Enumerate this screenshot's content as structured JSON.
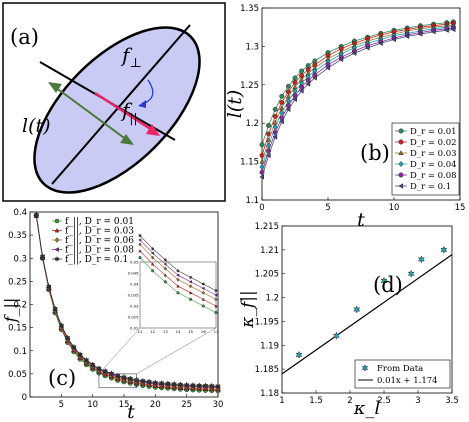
{
  "panels": {
    "a": {
      "label": "(a)",
      "f_perp_label": "f",
      "f_perp_sub": "⊥",
      "f_par_label": "f",
      "f_par_sub": "||",
      "length_label": "l(t)",
      "colors": {
        "ellipse_fill": "#c9cbf5",
        "green_arrow": "#4a7a3a",
        "pink_arrow": "#ee2266",
        "blue_arrow": "#2a3ad6"
      }
    },
    "b": {
      "label": "(b)"
    },
    "c": {
      "label": "(c)"
    },
    "d": {
      "label": "(d)"
    }
  },
  "chart_data": [
    {
      "id": "b",
      "type": "line",
      "xlabel": "t",
      "ylabel": "l(t)",
      "xlim": [
        0,
        15
      ],
      "ylim": [
        1.1,
        1.35
      ],
      "xticks": [
        0,
        5,
        10,
        15
      ],
      "yticks": [
        1.1,
        1.15,
        1.2,
        1.25,
        1.3,
        1.35
      ],
      "ytick_labels": [
        "1.1",
        "1.15",
        "1.2",
        "1.25",
        "1.3",
        "1.35"
      ],
      "legend_position": "bottom-right",
      "x": [
        0,
        0.5,
        1,
        1.5,
        2,
        2.5,
        3,
        3.5,
        4,
        5,
        6,
        7,
        8,
        9,
        10,
        11,
        12,
        13,
        14,
        14.5
      ],
      "series": [
        {
          "name": "D_r = 0.01",
          "color": "#2e8b57",
          "marker": "circle",
          "values": [
            1.172,
            1.197,
            1.218,
            1.235,
            1.248,
            1.259,
            1.268,
            1.275,
            1.281,
            1.292,
            1.3,
            1.307,
            1.312,
            1.317,
            1.321,
            1.324,
            1.327,
            1.329,
            1.331,
            1.332
          ]
        },
        {
          "name": "D_r = 0.02",
          "color": "#cc2222",
          "marker": "circle",
          "values": [
            1.158,
            1.186,
            1.209,
            1.227,
            1.241,
            1.253,
            1.262,
            1.27,
            1.276,
            1.288,
            1.297,
            1.304,
            1.31,
            1.315,
            1.319,
            1.322,
            1.325,
            1.327,
            1.329,
            1.33
          ]
        },
        {
          "name": "D_r = 0.03",
          "color": "#a0762a",
          "marker": "triangle",
          "values": [
            1.15,
            1.178,
            1.201,
            1.22,
            1.235,
            1.247,
            1.257,
            1.265,
            1.272,
            1.284,
            1.293,
            1.301,
            1.307,
            1.312,
            1.316,
            1.32,
            1.323,
            1.325,
            1.327,
            1.328
          ]
        },
        {
          "name": "D_r = 0.04",
          "color": "#1ea6b8",
          "marker": "diamond",
          "values": [
            1.143,
            1.171,
            1.195,
            1.214,
            1.229,
            1.242,
            1.252,
            1.261,
            1.268,
            1.28,
            1.29,
            1.298,
            1.304,
            1.309,
            1.314,
            1.317,
            1.32,
            1.323,
            1.325,
            1.326
          ]
        },
        {
          "name": "D_r = 0.08",
          "color": "#8a2a9a",
          "marker": "circle",
          "values": [
            1.136,
            1.164,
            1.188,
            1.207,
            1.223,
            1.236,
            1.247,
            1.256,
            1.263,
            1.276,
            1.286,
            1.294,
            1.301,
            1.306,
            1.311,
            1.315,
            1.318,
            1.321,
            1.323,
            1.324
          ]
        },
        {
          "name": "D_r = 0.1",
          "color": "#4a4a8a",
          "marker": "triangle-left",
          "values": [
            1.13,
            1.158,
            1.182,
            1.202,
            1.218,
            1.231,
            1.242,
            1.251,
            1.259,
            1.272,
            1.283,
            1.291,
            1.298,
            1.304,
            1.309,
            1.313,
            1.316,
            1.319,
            1.321,
            1.322
          ]
        }
      ]
    },
    {
      "id": "c",
      "type": "line",
      "xlabel": "t",
      "ylabel": "f_||",
      "xlim": [
        0,
        30
      ],
      "ylim": [
        0,
        0.4
      ],
      "xticks": [
        5,
        10,
        15,
        20,
        25,
        30
      ],
      "yticks": [
        0,
        0.05,
        0.1,
        0.15,
        0.2,
        0.25,
        0.3,
        0.35,
        0.4
      ],
      "ytick_labels": [
        "0",
        "0.05",
        "0.1",
        "0.15",
        "0.2",
        "0.25",
        "0.3",
        "0.35",
        "0.4"
      ],
      "legend_position": "top-left",
      "x": [
        1,
        2,
        3,
        4,
        5,
        6,
        7,
        8,
        9,
        10,
        11,
        12,
        13,
        14,
        15,
        16,
        17,
        18,
        19,
        20,
        21,
        22,
        23,
        24,
        25,
        26,
        27,
        28,
        29,
        30
      ],
      "series": [
        {
          "name": "f_||, D_r = 0.01",
          "color": "#3aa03a",
          "marker": "circle",
          "values": [
            0.392,
            0.3,
            0.232,
            0.182,
            0.146,
            0.118,
            0.098,
            0.082,
            0.07,
            0.06,
            0.052,
            0.046,
            0.041,
            0.036,
            0.033,
            0.03,
            0.027,
            0.025,
            0.023,
            0.021,
            0.02,
            0.019,
            0.018,
            0.017,
            0.016,
            0.0155,
            0.015,
            0.0145,
            0.014,
            0.0135
          ]
        },
        {
          "name": "f_||, D_r = 0.03",
          "color": "#cc2222",
          "marker": "triangle",
          "values": [
            0.392,
            0.301,
            0.234,
            0.185,
            0.149,
            0.121,
            0.101,
            0.085,
            0.073,
            0.063,
            0.055,
            0.049,
            0.044,
            0.039,
            0.036,
            0.033,
            0.03,
            0.028,
            0.026,
            0.024,
            0.023,
            0.022,
            0.021,
            0.02,
            0.019,
            0.0185,
            0.018,
            0.0175,
            0.017,
            0.0165
          ]
        },
        {
          "name": "f_||, D_r = 0.06",
          "color": "#a0762a",
          "marker": "diamond",
          "values": [
            0.393,
            0.302,
            0.236,
            0.187,
            0.151,
            0.124,
            0.104,
            0.088,
            0.076,
            0.066,
            0.058,
            0.052,
            0.047,
            0.042,
            0.039,
            0.036,
            0.033,
            0.031,
            0.029,
            0.027,
            0.026,
            0.025,
            0.024,
            0.023,
            0.022,
            0.0215,
            0.021,
            0.0205,
            0.02,
            0.0195
          ]
        },
        {
          "name": "f_||, D_r = 0.08",
          "color": "#8a2a9a",
          "marker": "triangle-left",
          "values": [
            0.393,
            0.303,
            0.237,
            0.189,
            0.153,
            0.126,
            0.106,
            0.09,
            0.078,
            0.068,
            0.06,
            0.054,
            0.049,
            0.044,
            0.041,
            0.038,
            0.035,
            0.033,
            0.031,
            0.029,
            0.028,
            0.027,
            0.026,
            0.025,
            0.024,
            0.0235,
            0.023,
            0.0225,
            0.022,
            0.0215
          ]
        },
        {
          "name": "f_||, D_r = 0.1",
          "color": "#333333",
          "marker": "star",
          "values": [
            0.394,
            0.304,
            0.239,
            0.191,
            0.155,
            0.128,
            0.108,
            0.092,
            0.08,
            0.07,
            0.062,
            0.056,
            0.051,
            0.046,
            0.043,
            0.04,
            0.037,
            0.035,
            0.033,
            0.031,
            0.03,
            0.029,
            0.028,
            0.027,
            0.026,
            0.0255,
            0.025,
            0.0245,
            0.024,
            0.0235
          ]
        }
      ],
      "inset": {
        "xlim": [
          11,
          17
        ],
        "ylim": [
          0.02,
          0.05
        ],
        "xticks": [
          11,
          12,
          13,
          14,
          15,
          16,
          17
        ],
        "yticks": [
          0.02,
          0.025,
          0.03,
          0.035,
          0.04,
          0.045,
          0.05
        ],
        "ytick_labels": [
          "0.02",
          "0.025",
          "0.03",
          "0.035",
          "0.04",
          "0.045",
          "0.05"
        ]
      }
    },
    {
      "id": "d",
      "type": "scatter",
      "xlabel": "κ_l",
      "ylabel": "κ_f||",
      "xlim": [
        1,
        3.5
      ],
      "ylim": [
        1.18,
        1.215
      ],
      "xticks": [
        1,
        1.5,
        2,
        2.5,
        3,
        3.5
      ],
      "yticks": [
        1.18,
        1.185,
        1.19,
        1.195,
        1.2,
        1.205,
        1.21,
        1.215
      ],
      "ytick_labels": [
        "1.18",
        "1.185",
        "1.19",
        "1.195",
        "1.2",
        "1.205",
        "1.21",
        "1.215"
      ],
      "legend_position": "bottom-right",
      "points": {
        "name": "From Data",
        "color": "#1ea6b8",
        "x": [
          1.25,
          1.8,
          2.1,
          2.5,
          2.9,
          3.05,
          3.38
        ],
        "y": [
          1.188,
          1.192,
          1.1975,
          1.2035,
          1.205,
          1.208,
          1.21
        ]
      },
      "fit": {
        "name": "0.01x + 1.174",
        "slope": 0.01,
        "intercept": 1.174,
        "color": "#000000"
      }
    }
  ]
}
